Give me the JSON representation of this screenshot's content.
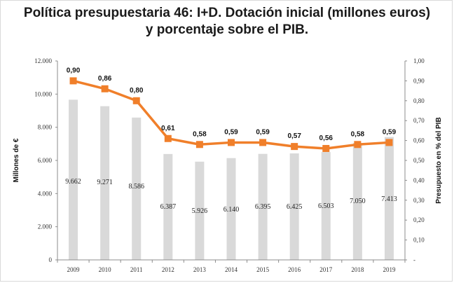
{
  "title_line1": "Política presupuestaria 46: I+D. Dotación inicial (millones euros)",
  "title_line2": "y porcentaje sobre el PIB.",
  "chart_data": {
    "type": "bar",
    "categories": [
      "2009",
      "2010",
      "2011",
      "2012",
      "2013",
      "2014",
      "2015",
      "2016",
      "2017",
      "2018",
      "2019"
    ],
    "series": [
      {
        "type": "bar",
        "axis": "left",
        "values": [
          9662,
          9271,
          8586,
          6387,
          5926,
          6140,
          6395,
          6425,
          6503,
          7050,
          7413
        ],
        "labels": [
          "9.662",
          "9.271",
          "8.586",
          "6.387",
          "5.926",
          "6.140",
          "6.395",
          "6.425",
          "6.503",
          "7.050",
          "7.413"
        ],
        "color": "#d9d9d9"
      },
      {
        "type": "line",
        "axis": "right",
        "values": [
          0.9,
          0.86,
          0.8,
          0.61,
          0.58,
          0.59,
          0.59,
          0.57,
          0.56,
          0.58,
          0.59
        ],
        "labels": [
          "0,90",
          "0,86",
          "0,80",
          "0,61",
          "0,58",
          "0,59",
          "0,59",
          "0,57",
          "0,56",
          "0,58",
          "0,59"
        ],
        "color": "#f07f2a"
      }
    ],
    "ylabel": "Millones de €",
    "ylabel_right": "Presupuesto en % del PIB",
    "ylim": [
      0,
      12000
    ],
    "ylim_right": [
      0,
      1.0
    ],
    "yticks": [
      "0",
      "2.000",
      "4.000",
      "6.000",
      "8.000",
      "10.000",
      "12.000"
    ],
    "yticks_right": [
      "-",
      "0,10",
      "0,20",
      "0,30",
      "0,40",
      "0,50",
      "0,60",
      "0,70",
      "0,80",
      "0,90",
      "1,00"
    ],
    "grid": false,
    "legend": "none"
  }
}
